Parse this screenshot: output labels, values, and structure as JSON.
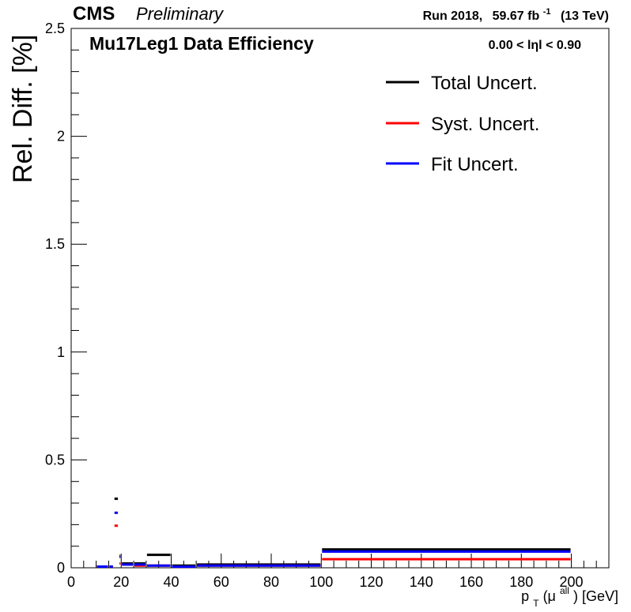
{
  "chart_data": {
    "type": "line",
    "title": "Mu17Leg1 Data Efficiency",
    "header_left_bold": "CMS",
    "header_left_italic": "Preliminary",
    "header_right": {
      "run": "Run 2018,",
      "lumi": "59.67 fb",
      "lumi_exp": "-1",
      "energy": "(13 TeV)"
    },
    "eta_range": "0.00 < lηl < 0.90",
    "xlabel": {
      "p": "p",
      "sub": "T",
      "open": "(μ",
      "sup": "all",
      "close": ") [GeV]"
    },
    "ylabel": "Rel. Diff. [%]",
    "xlim": [
      0,
      215
    ],
    "ylim": [
      0,
      2.5
    ],
    "x_ticks": [
      0,
      20,
      40,
      60,
      80,
      100,
      120,
      140,
      160,
      180,
      200
    ],
    "x_tick_labels": [
      "0",
      "20",
      "40",
      "60",
      "80",
      "100",
      "120",
      "140",
      "160",
      "180",
      "200"
    ],
    "y_ticks": [
      0,
      0.5,
      1,
      1.5,
      2,
      2.5
    ],
    "y_tick_labels": [
      "0",
      "0.5",
      "1",
      "1.5",
      "2",
      "2.5"
    ],
    "legend_position": "top-right",
    "bin_edges": [
      10,
      15,
      17,
      19,
      20,
      25,
      30,
      40,
      50,
      100,
      200
    ],
    "series": [
      {
        "name": "Total Uncert.",
        "color": "#000000",
        "values": [
          0.0,
          0.0,
          0.32,
          0.055,
          0.02,
          0.02,
          0.06,
          0.01,
          0.015,
          0.085
        ]
      },
      {
        "name": "Syst. Uncert.",
        "color": "#ff0000",
        "values": [
          0.0,
          0.0,
          0.195,
          0.02,
          0.015,
          0.01,
          0.01,
          0.005,
          0.01,
          0.04
        ]
      },
      {
        "name": "Fit Uncert.",
        "color": "#0000ff",
        "values": [
          0.0,
          0.0,
          0.255,
          0.05,
          0.015,
          0.015,
          0.01,
          0.005,
          0.01,
          0.075
        ]
      }
    ]
  }
}
